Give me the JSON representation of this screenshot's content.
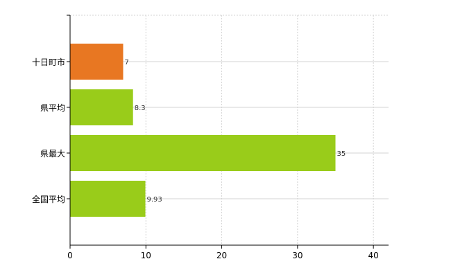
{
  "chart_data": {
    "type": "bar",
    "orientation": "horizontal",
    "categories": [
      "十日町市",
      "県平均",
      "県最大",
      "全国平均"
    ],
    "values": [
      7,
      8.3,
      35,
      9.93
    ],
    "value_labels": [
      "7",
      "8.3",
      "35",
      "9.93"
    ],
    "bar_colors": [
      "#e87722",
      "#99cc1a",
      "#99cc1a",
      "#99cc1a"
    ],
    "xlim": [
      0,
      42
    ],
    "xticks": [
      0,
      10,
      20,
      30,
      40
    ],
    "xtick_labels": [
      "0",
      "10",
      "20",
      "30",
      "40"
    ],
    "grid": true,
    "grid_color": "#d3d3d3",
    "legend": "none"
  }
}
